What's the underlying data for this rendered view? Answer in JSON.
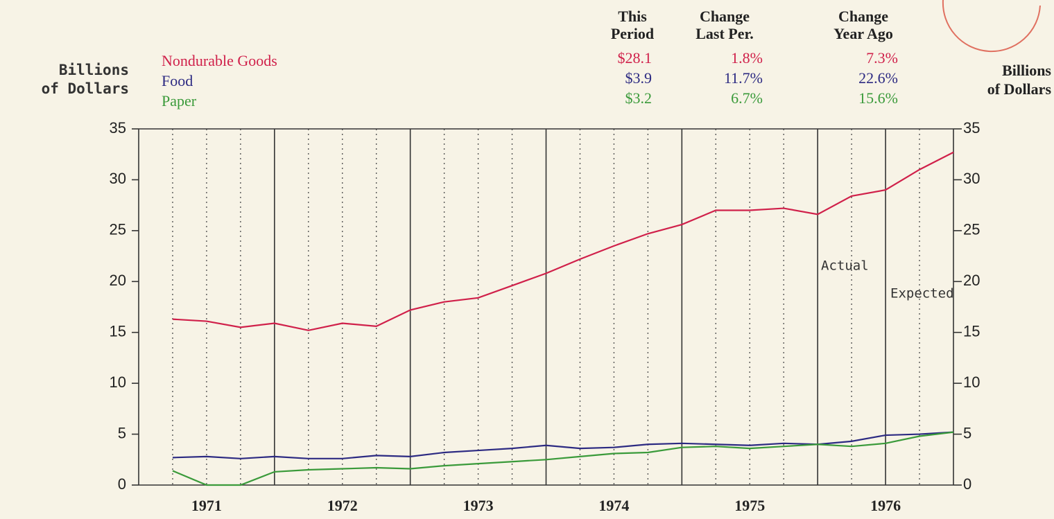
{
  "chart_data": {
    "type": "line",
    "y_label": [
      "Billions",
      "of Dollars"
    ],
    "y2_label": [
      "Billions",
      "of Dollars"
    ],
    "summary_headers": [
      [
        "This",
        "Period"
      ],
      [
        "Change",
        "Last Per."
      ],
      [
        "Change",
        "Year Ago"
      ]
    ],
    "categories": [
      null,
      null,
      null,
      null,
      null,
      null,
      null,
      null,
      null,
      null,
      null,
      null,
      null,
      null,
      null,
      null,
      null,
      null,
      null,
      null,
      null,
      null,
      null,
      null
    ],
    "year_labels": [
      "1971",
      "1972",
      "1973",
      "1974",
      "1975",
      "1976"
    ],
    "series": [
      {
        "name": "Nondurable Goods",
        "color": "#d0204a",
        "summary": [
          "$28.1",
          "1.8%",
          "7.3%"
        ],
        "values": [
          16.3,
          16.1,
          15.5,
          15.9,
          15.2,
          15.9,
          15.6,
          17.2,
          18.0,
          18.4,
          19.6,
          20.8,
          22.2,
          23.5,
          24.7,
          25.6,
          27.0,
          27.0,
          27.2,
          26.6,
          28.4,
          29.0,
          31.0,
          32.7
        ]
      },
      {
        "name": "Food",
        "color": "#2c2a82",
        "summary": [
          "$3.9",
          "11.7%",
          "22.6%"
        ],
        "values": [
          2.7,
          2.8,
          2.6,
          2.8,
          2.6,
          2.6,
          2.9,
          2.8,
          3.2,
          3.4,
          3.6,
          3.9,
          3.6,
          3.7,
          4.0,
          4.1,
          4.0,
          3.9,
          4.1,
          4.0,
          4.3,
          4.9,
          5.0,
          5.2
        ]
      },
      {
        "name": "Paper",
        "color": "#3a9a3a",
        "summary": [
          "$3.2",
          "6.7%",
          "15.6%"
        ],
        "values": [
          1.4,
          0.0,
          0.0,
          1.3,
          1.5,
          1.6,
          1.7,
          1.6,
          1.9,
          2.1,
          2.3,
          2.5,
          2.8,
          3.1,
          3.2,
          3.7,
          3.8,
          3.6,
          3.8,
          4.0,
          3.8,
          4.1,
          4.8,
          5.2
        ]
      }
    ],
    "ylim": [
      0,
      35
    ],
    "yticks": [
      0,
      5,
      10,
      15,
      20,
      25,
      30,
      35
    ],
    "y2lim": [
      0,
      35
    ],
    "y2ticks": [
      0,
      5,
      10,
      15,
      20,
      25,
      30,
      35
    ],
    "annotations": [
      "Actual",
      "Expected"
    ]
  }
}
